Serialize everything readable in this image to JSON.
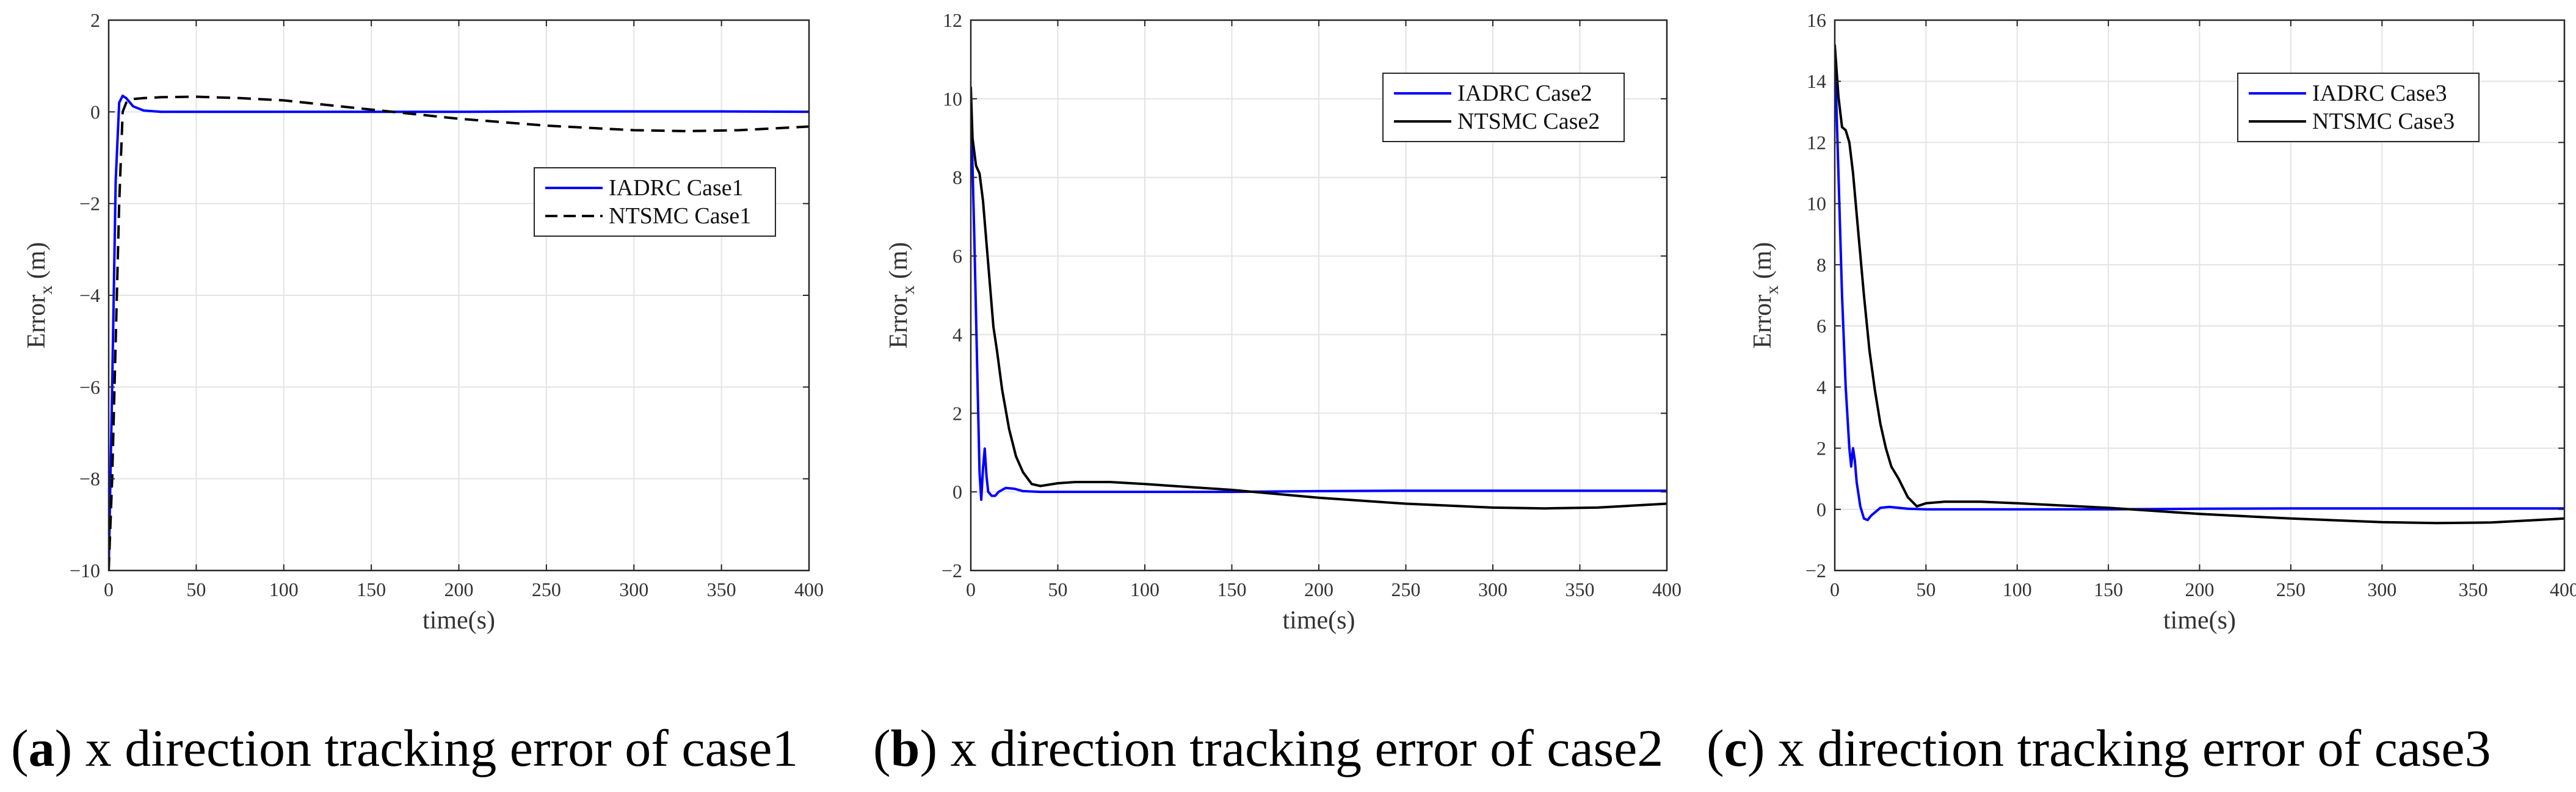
{
  "chart_data": [
    {
      "type": "line",
      "xlabel": "time(s)",
      "ylabel": "Error",
      "ylabel_sub": "x",
      "ylabel_unit": "(m)",
      "xlim": [
        0,
        400
      ],
      "ylim": [
        -10,
        2
      ],
      "xticks": [
        0,
        50,
        100,
        150,
        200,
        250,
        300,
        350,
        400
      ],
      "yticks": [
        -10,
        -8,
        -6,
        -4,
        -2,
        0,
        2
      ],
      "grid": true,
      "legend_position": "center-right",
      "series": [
        {
          "name": "IADRC Case1",
          "color": "#0000ff",
          "style": "solid",
          "x": [
            0,
            2,
            4,
            6,
            8,
            10,
            14,
            20,
            30,
            50,
            100,
            150,
            200,
            250,
            300,
            350,
            400
          ],
          "y": [
            -10,
            -6,
            -1.5,
            0.2,
            0.35,
            0.3,
            0.12,
            0.03,
            0,
            0,
            0,
            0,
            0,
            0.01,
            0.01,
            0.01,
            0
          ]
        },
        {
          "name": "NTSMC Case1",
          "color": "#000000",
          "style": "dashed",
          "x": [
            0,
            2,
            4,
            6,
            8,
            10,
            14,
            20,
            30,
            50,
            75,
            100,
            125,
            150,
            175,
            200,
            250,
            300,
            330,
            360,
            400
          ],
          "y": [
            -10,
            -8,
            -5,
            -2,
            0,
            0.2,
            0.28,
            0.3,
            0.32,
            0.33,
            0.3,
            0.25,
            0.15,
            0.05,
            -0.05,
            -0.15,
            -0.3,
            -0.4,
            -0.42,
            -0.4,
            -0.32
          ]
        }
      ]
    },
    {
      "type": "line",
      "xlabel": "time(s)",
      "ylabel": "Error",
      "ylabel_sub": "x",
      "ylabel_unit": "(m)",
      "xlim": [
        0,
        400
      ],
      "ylim": [
        -2,
        12
      ],
      "xticks": [
        0,
        50,
        100,
        150,
        200,
        250,
        300,
        350,
        400
      ],
      "yticks": [
        -2,
        0,
        2,
        4,
        6,
        8,
        10,
        12
      ],
      "grid": true,
      "legend_position": "top-right",
      "series": [
        {
          "name": "IADRC Case2",
          "color": "#0000ff",
          "style": "solid",
          "x": [
            0,
            2,
            4,
            5,
            6,
            7,
            8,
            9,
            10,
            12,
            14,
            16,
            18,
            20,
            25,
            30,
            40,
            50,
            100,
            150,
            200,
            250,
            300,
            350,
            400
          ],
          "y": [
            10,
            6.5,
            2.5,
            0.5,
            -0.2,
            0.6,
            1.1,
            0.4,
            0,
            -0.1,
            -0.1,
            0,
            0.05,
            0.1,
            0.08,
            0.02,
            0,
            0,
            0,
            0,
            0.02,
            0.03,
            0.03,
            0.03,
            0.03
          ]
        },
        {
          "name": "NTSMC Case2",
          "color": "#000000",
          "style": "solid",
          "x": [
            0,
            1,
            3,
            5,
            7,
            10,
            13,
            15,
            18,
            22,
            26,
            30,
            35,
            40,
            50,
            60,
            80,
            100,
            150,
            200,
            250,
            300,
            330,
            360,
            400
          ],
          "y": [
            10.3,
            9,
            8.3,
            8.1,
            7.4,
            5.8,
            4.2,
            3.6,
            2.6,
            1.6,
            0.9,
            0.5,
            0.2,
            0.15,
            0.22,
            0.25,
            0.25,
            0.2,
            0.05,
            -0.15,
            -0.3,
            -0.4,
            -0.42,
            -0.4,
            -0.3
          ]
        }
      ]
    },
    {
      "type": "line",
      "xlabel": "time(s)",
      "ylabel": "Error",
      "ylabel_sub": "x",
      "ylabel_unit": "(m)",
      "xlim": [
        0,
        400
      ],
      "ylim": [
        -2,
        16
      ],
      "xticks": [
        0,
        50,
        100,
        150,
        200,
        250,
        300,
        350,
        400
      ],
      "yticks": [
        -2,
        0,
        2,
        4,
        6,
        8,
        10,
        12,
        14,
        16
      ],
      "grid": true,
      "legend_position": "top-right",
      "series": [
        {
          "name": "IADRC Case3",
          "color": "#0000ff",
          "style": "solid",
          "x": [
            0,
            2,
            4,
            6,
            8,
            9,
            10,
            11,
            12,
            14,
            16,
            18,
            20,
            25,
            30,
            40,
            50,
            100,
            150,
            200,
            250,
            300,
            350,
            400
          ],
          "y": [
            15,
            11,
            7,
            4,
            2,
            1.4,
            2,
            1.6,
            0.9,
            0.1,
            -0.3,
            -0.35,
            -0.2,
            0.05,
            0.08,
            0.02,
            0,
            0,
            0,
            0.02,
            0.03,
            0.03,
            0.03,
            0.03
          ]
        },
        {
          "name": "NTSMC Case3",
          "color": "#000000",
          "style": "solid",
          "x": [
            0,
            2,
            4,
            6,
            8,
            10,
            13,
            16,
            19,
            22,
            25,
            28,
            31,
            35,
            40,
            45,
            50,
            60,
            80,
            100,
            150,
            200,
            250,
            300,
            330,
            360,
            400
          ],
          "y": [
            15.2,
            13.5,
            12.5,
            12.4,
            12,
            11,
            9,
            7,
            5.2,
            3.9,
            2.8,
            2,
            1.4,
            1.0,
            0.4,
            0.1,
            0.2,
            0.25,
            0.25,
            0.2,
            0.05,
            -0.15,
            -0.3,
            -0.42,
            -0.45,
            -0.43,
            -0.3
          ]
        }
      ]
    }
  ],
  "captions": [
    {
      "letter": "a",
      "text": "x direction tracking error of case1"
    },
    {
      "letter": "b",
      "text": "x direction tracking error of case2"
    },
    {
      "letter": "c",
      "text": "x direction tracking error of case3"
    }
  ]
}
